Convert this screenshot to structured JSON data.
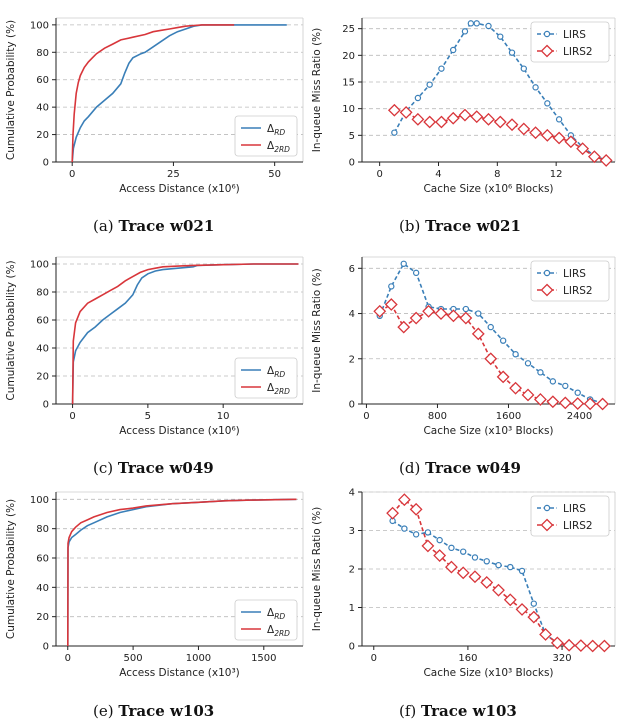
{
  "figure": {
    "captions": [
      {
        "label": "(a)",
        "text": "Trace w021"
      },
      {
        "label": "(b)",
        "text": "Trace w021"
      },
      {
        "label": "(c)",
        "text": "Trace w049"
      },
      {
        "label": "(d)",
        "text": "Trace w049"
      },
      {
        "label": "(e)",
        "text": "Trace w103"
      },
      {
        "label": "(f)",
        "text": "Trace w103"
      }
    ]
  },
  "colors": {
    "blue": "#3a7fb8",
    "red": "#d8363b",
    "grid": "#bbbbbb"
  },
  "chart_data": [
    {
      "type": "line",
      "xlabel": "Access Distance (x10⁶)",
      "ylabel": "Cumulative Probability (%)",
      "xlim": [
        -4,
        57
      ],
      "ylim": [
        0,
        105
      ],
      "xticks": [
        0,
        25,
        50
      ],
      "xticklabels": [
        "0",
        "25",
        "50"
      ],
      "yticks": [
        0,
        20,
        40,
        60,
        80,
        100
      ],
      "yticklabels": [
        "0",
        "20",
        "40",
        "60",
        "80",
        "100"
      ],
      "legend": "lower-right",
      "series": [
        {
          "name": "ΔRD",
          "name_main": "Δ",
          "name_sub": "RD",
          "color": "blue",
          "x": [
            0,
            0.3,
            1,
            2,
            3,
            4,
            6,
            8,
            10,
            12,
            13,
            14,
            15,
            17,
            18,
            20,
            22,
            24,
            26,
            28,
            30,
            32,
            33,
            40,
            53
          ],
          "y": [
            0,
            10,
            18,
            25,
            30,
            33,
            40,
            45,
            50,
            57,
            65,
            72,
            76,
            79,
            80,
            84,
            88,
            92,
            95,
            97,
            99,
            100,
            100,
            100,
            100
          ]
        },
        {
          "name": "Δ2RD",
          "name_main": "Δ",
          "name_sub": "2RD",
          "color": "red",
          "x": [
            0,
            0.2,
            0.5,
            1,
            1.5,
            2,
            3,
            4,
            5,
            6,
            8,
            10,
            12,
            15,
            18,
            20,
            22,
            24,
            26,
            28,
            30,
            32,
            33,
            40
          ],
          "y": [
            0,
            20,
            35,
            50,
            58,
            63,
            69,
            73,
            76,
            79,
            83,
            86,
            89,
            91,
            93,
            95,
            96,
            97,
            98,
            99,
            99.5,
            100,
            100,
            100
          ]
        }
      ]
    },
    {
      "type": "line",
      "xlabel": "Cache Size (x10⁶ Blocks)",
      "ylabel": "In-queue Miss Ratio (%)",
      "xlim": [
        -1.2,
        16
      ],
      "ylim": [
        0,
        27
      ],
      "xticks": [
        0,
        4,
        8,
        12
      ],
      "xticklabels": [
        "0",
        "4",
        "8",
        "12"
      ],
      "yticks": [
        0,
        5,
        10,
        15,
        20,
        25
      ],
      "yticklabels": [
        "0",
        "5",
        "10",
        "15",
        "20",
        "25"
      ],
      "legend": "top-right",
      "series": [
        {
          "name": "LIRS",
          "color": "blue",
          "marker": "circle",
          "dash": true,
          "x": [
            1.0,
            1.8,
            2.6,
            3.4,
            4.2,
            5.0,
            5.8,
            6.2,
            6.6,
            7.4,
            8.2,
            9.0,
            9.8,
            10.6,
            11.4,
            12.2,
            13.0,
            13.8,
            14.6,
            15.4
          ],
          "y": [
            5.5,
            9.5,
            12.0,
            14.5,
            17.5,
            21.0,
            24.5,
            26.0,
            26.0,
            25.5,
            23.5,
            20.5,
            17.5,
            14.0,
            11.0,
            8.0,
            5.0,
            2.8,
            1.2,
            0.3
          ]
        },
        {
          "name": "LIRS2",
          "color": "red",
          "marker": "diamond",
          "dash": true,
          "x": [
            1.0,
            1.8,
            2.6,
            3.4,
            4.2,
            5.0,
            5.8,
            6.6,
            7.4,
            8.2,
            9.0,
            9.8,
            10.6,
            11.4,
            12.2,
            13.0,
            13.8,
            14.6,
            15.4
          ],
          "y": [
            9.7,
            9.3,
            8.0,
            7.5,
            7.5,
            8.2,
            8.8,
            8.5,
            8.0,
            7.5,
            7.0,
            6.2,
            5.5,
            5.0,
            4.5,
            3.8,
            2.5,
            1.0,
            0.3
          ]
        }
      ]
    },
    {
      "type": "line",
      "xlabel": "Access Distance (x10⁶)",
      "ylabel": "Cumulative Probability (%)",
      "xlim": [
        -1.1,
        15.3
      ],
      "ylim": [
        0,
        105
      ],
      "xticks": [
        0,
        5,
        10
      ],
      "xticklabels": [
        "0",
        "5",
        "10"
      ],
      "yticks": [
        0,
        20,
        40,
        60,
        80,
        100
      ],
      "yticklabels": [
        "0",
        "20",
        "40",
        "60",
        "80",
        "100"
      ],
      "legend": "lower-right",
      "series": [
        {
          "name": "ΔRD",
          "name_main": "Δ",
          "name_sub": "RD",
          "color": "blue",
          "x": [
            0,
            0.05,
            0.2,
            0.5,
            1,
            1.5,
            2,
            2.5,
            3,
            3.5,
            4,
            4.3,
            4.6,
            5,
            5.5,
            6,
            7,
            8,
            8.3,
            10,
            12,
            15
          ],
          "y": [
            0,
            30,
            38,
            44,
            51,
            55,
            60,
            64,
            68,
            72,
            78,
            85,
            90,
            93,
            95,
            96,
            97,
            98,
            99,
            99.5,
            100,
            100
          ]
        },
        {
          "name": "Δ2RD",
          "name_main": "Δ",
          "name_sub": "2RD",
          "color": "red",
          "x": [
            0,
            0.05,
            0.2,
            0.5,
            1,
            1.5,
            2,
            2.5,
            3,
            3.5,
            4,
            4.5,
            5,
            5.5,
            6,
            7,
            8,
            10,
            12,
            15
          ],
          "y": [
            0,
            45,
            58,
            66,
            72,
            75,
            78,
            81,
            84,
            88,
            91,
            94,
            96,
            97,
            98,
            98.5,
            99,
            99.5,
            100,
            100
          ]
        }
      ]
    },
    {
      "type": "line",
      "xlabel": "Cache Size (x10³ Blocks)",
      "ylabel": "In-queue Miss Ratio (%)",
      "xlim": [
        -50,
        2800
      ],
      "ylim": [
        0,
        6.5
      ],
      "xticks": [
        0,
        800,
        1600,
        2400
      ],
      "xticklabels": [
        "0",
        "800",
        "1600",
        "2400"
      ],
      "yticks": [
        0,
        2,
        4,
        6
      ],
      "yticklabels": [
        "0",
        "2",
        "4",
        "6"
      ],
      "legend": "top-right",
      "series": [
        {
          "name": "LIRS",
          "color": "blue",
          "marker": "circle",
          "dash": true,
          "x": [
            150,
            280,
            420,
            560,
            700,
            840,
            980,
            1120,
            1260,
            1400,
            1540,
            1680,
            1820,
            1960,
            2100,
            2240,
            2380,
            2520,
            2660
          ],
          "y": [
            3.9,
            5.2,
            6.2,
            5.8,
            4.3,
            4.2,
            4.2,
            4.2,
            4.0,
            3.4,
            2.8,
            2.2,
            1.8,
            1.4,
            1.0,
            0.8,
            0.5,
            0.2,
            0.05
          ]
        },
        {
          "name": "LIRS2",
          "color": "red",
          "marker": "diamond",
          "dash": true,
          "x": [
            150,
            280,
            420,
            560,
            700,
            840,
            980,
            1120,
            1260,
            1400,
            1540,
            1680,
            1820,
            1960,
            2100,
            2240,
            2380,
            2520,
            2660
          ],
          "y": [
            4.1,
            4.4,
            3.4,
            3.8,
            4.1,
            4.0,
            3.9,
            3.8,
            3.1,
            2.0,
            1.2,
            0.7,
            0.4,
            0.2,
            0.1,
            0.05,
            0.02,
            0.01,
            0.0
          ]
        }
      ]
    },
    {
      "type": "line",
      "xlabel": "Access Distance (x10³)",
      "ylabel": "Cumulative Probability (%)",
      "xlim": [
        -90,
        1800
      ],
      "ylim": [
        0,
        105
      ],
      "xticks": [
        0,
        500,
        1000,
        1500
      ],
      "xticklabels": [
        "0",
        "500",
        "1000",
        "1500"
      ],
      "yticks": [
        0,
        20,
        40,
        60,
        80,
        100
      ],
      "yticklabels": [
        "0",
        "20",
        "40",
        "60",
        "80",
        "100"
      ],
      "legend": "lower-right",
      "series": [
        {
          "name": "ΔRD",
          "name_main": "Δ",
          "name_sub": "RD",
          "color": "blue",
          "x": [
            0,
            2,
            10,
            30,
            60,
            100,
            150,
            200,
            300,
            400,
            500,
            600,
            800,
            1000,
            1200,
            1400,
            1750
          ],
          "y": [
            0,
            67,
            71,
            74,
            76,
            79,
            82,
            84,
            88,
            91,
            93,
            95,
            97,
            98,
            99,
            99.5,
            100
          ]
        },
        {
          "name": "Δ2RD",
          "name_main": "Δ",
          "name_sub": "2RD",
          "color": "red",
          "x": [
            0,
            2,
            10,
            30,
            60,
            100,
            150,
            200,
            300,
            400,
            500,
            600,
            800,
            1000,
            1200,
            1400,
            1750
          ],
          "y": [
            0,
            70,
            74,
            78,
            81,
            84,
            86,
            88,
            91,
            93,
            94,
            95.5,
            97,
            98,
            99,
            99.5,
            100
          ]
        }
      ]
    },
    {
      "type": "line",
      "xlabel": "Cache Size (x10³ Blocks)",
      "ylabel": "In-queue Miss Ratio (%)",
      "xlim": [
        -20,
        410
      ],
      "ylim": [
        0,
        4
      ],
      "xticks": [
        0,
        160,
        320
      ],
      "xticklabels": [
        "0",
        "160",
        "320"
      ],
      "yticks": [
        0,
        1,
        2,
        3,
        4
      ],
      "yticklabels": [
        "0",
        "1",
        "2",
        "3",
        "4"
      ],
      "legend": "top-right",
      "series": [
        {
          "name": "LIRS",
          "color": "blue",
          "marker": "circle",
          "dash": true,
          "x": [
            32,
            52,
            72,
            92,
            112,
            132,
            152,
            172,
            192,
            212,
            232,
            252,
            272,
            292,
            312,
            332,
            352,
            372,
            392
          ],
          "y": [
            3.25,
            3.05,
            2.9,
            2.95,
            2.75,
            2.55,
            2.45,
            2.3,
            2.2,
            2.1,
            2.05,
            1.95,
            1.1,
            0.3,
            0.08,
            0.02,
            0.01,
            0.0,
            0.0
          ]
        },
        {
          "name": "LIRS2",
          "color": "red",
          "marker": "diamond",
          "dash": true,
          "x": [
            32,
            52,
            72,
            92,
            112,
            132,
            152,
            172,
            192,
            212,
            232,
            252,
            272,
            292,
            312,
            332,
            352,
            372,
            392
          ],
          "y": [
            3.45,
            3.8,
            3.55,
            2.6,
            2.35,
            2.05,
            1.9,
            1.8,
            1.65,
            1.45,
            1.2,
            0.95,
            0.75,
            0.3,
            0.08,
            0.02,
            0.01,
            0.0,
            0.0
          ]
        }
      ]
    }
  ]
}
